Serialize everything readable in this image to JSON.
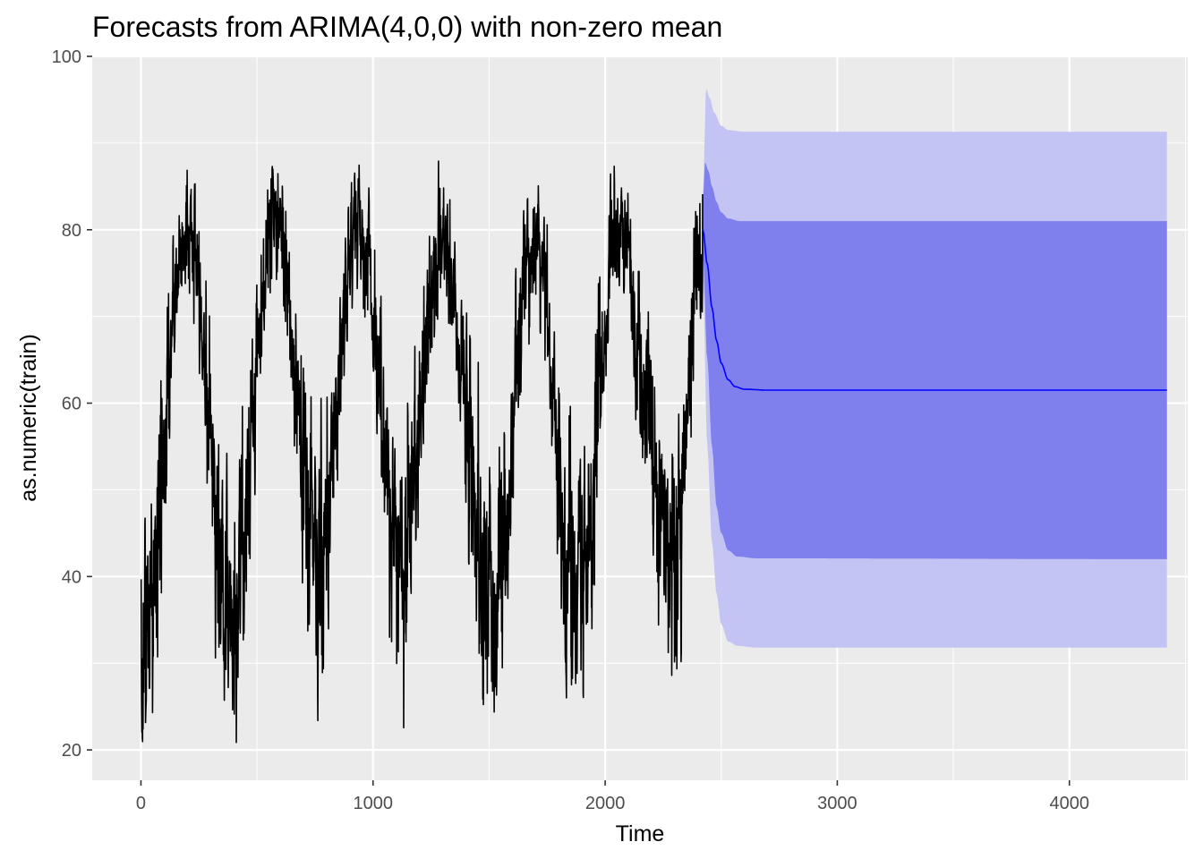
{
  "chart_data": {
    "type": "line",
    "title": "Forecasts from ARIMA(4,0,0) with non-zero mean",
    "xlabel": "Time",
    "ylabel": "as.numeric(train)",
    "xlim": [
      -210,
      4510
    ],
    "ylim": [
      16.5,
      100
    ],
    "x_ticks": [
      0,
      1000,
      2000,
      3000,
      4000
    ],
    "x_tick_labels": [
      "0",
      "1000",
      "2000",
      "3000",
      "4000"
    ],
    "y_ticks": [
      20,
      40,
      60,
      80,
      100
    ],
    "y_tick_labels": [
      "20",
      "40",
      "60",
      "80",
      "100"
    ],
    "grid": true,
    "legend": "none",
    "colors": {
      "panel_background": "#ebebeb",
      "grid_line": "#ffffff",
      "history_line": "#000000",
      "forecast_line": "#0000ff",
      "band_95": "#c4c4f4",
      "band_80": "#7f7fee",
      "tick_mark": "#333333"
    },
    "history": {
      "x_start": 1,
      "x_end": 2420,
      "n_points": 2420,
      "mean": 61.5,
      "approx_min": 20,
      "approx_max": 88,
      "cycle_length": 365,
      "seasonal_peaks": [
        {
          "x": 200,
          "y": 80
        },
        {
          "x": 575,
          "y": 81
        },
        {
          "x": 940,
          "y": 81
        },
        {
          "x": 1300,
          "y": 77
        },
        {
          "x": 1690,
          "y": 79
        },
        {
          "x": 2060,
          "y": 79
        },
        {
          "x": 2420,
          "y": 79
        }
      ],
      "seasonal_troughs": [
        {
          "x": 10,
          "y": 33
        },
        {
          "x": 390,
          "y": 36
        },
        {
          "x": 770,
          "y": 42
        },
        {
          "x": 1110,
          "y": 43
        },
        {
          "x": 1520,
          "y": 37
        },
        {
          "x": 1880,
          "y": 37
        },
        {
          "x": 2290,
          "y": 42
        }
      ]
    },
    "forecast": {
      "x_start": 2421,
      "x_end": 4420,
      "mean_curve": [
        [
          2421,
          80.0
        ],
        [
          2440,
          76.0
        ],
        [
          2460,
          71.0
        ],
        [
          2480,
          67.2
        ],
        [
          2500,
          64.6
        ],
        [
          2530,
          62.7
        ],
        [
          2560,
          61.9
        ],
        [
          2600,
          61.6
        ],
        [
          2700,
          61.5
        ],
        [
          4420,
          61.5
        ]
      ],
      "upper_80": [
        [
          2421,
          83.0
        ],
        [
          2430,
          87.8
        ],
        [
          2445,
          86.8
        ],
        [
          2460,
          85.0
        ],
        [
          2480,
          83.2
        ],
        [
          2500,
          82.0
        ],
        [
          2530,
          81.3
        ],
        [
          2580,
          81.0
        ],
        [
          2700,
          81.0
        ],
        [
          4420,
          81.0
        ]
      ],
      "lower_80": [
        [
          2421,
          77.0
        ],
        [
          2440,
          65.0
        ],
        [
          2460,
          55.0
        ],
        [
          2480,
          48.0
        ],
        [
          2500,
          45.0
        ],
        [
          2530,
          43.0
        ],
        [
          2570,
          42.3
        ],
        [
          2650,
          42.1
        ],
        [
          4420,
          42.0
        ]
      ],
      "upper_95": [
        [
          2421,
          84.0
        ],
        [
          2435,
          96.3
        ],
        [
          2450,
          95.2
        ],
        [
          2470,
          93.5
        ],
        [
          2500,
          92.0
        ],
        [
          2530,
          91.5
        ],
        [
          2600,
          91.3
        ],
        [
          4420,
          91.3
        ]
      ],
      "lower_95": [
        [
          2421,
          74.0
        ],
        [
          2440,
          55.0
        ],
        [
          2460,
          44.0
        ],
        [
          2480,
          38.0
        ],
        [
          2500,
          34.5
        ],
        [
          2530,
          32.5
        ],
        [
          2570,
          32.0
        ],
        [
          2650,
          31.8
        ],
        [
          4420,
          31.8
        ]
      ]
    }
  }
}
